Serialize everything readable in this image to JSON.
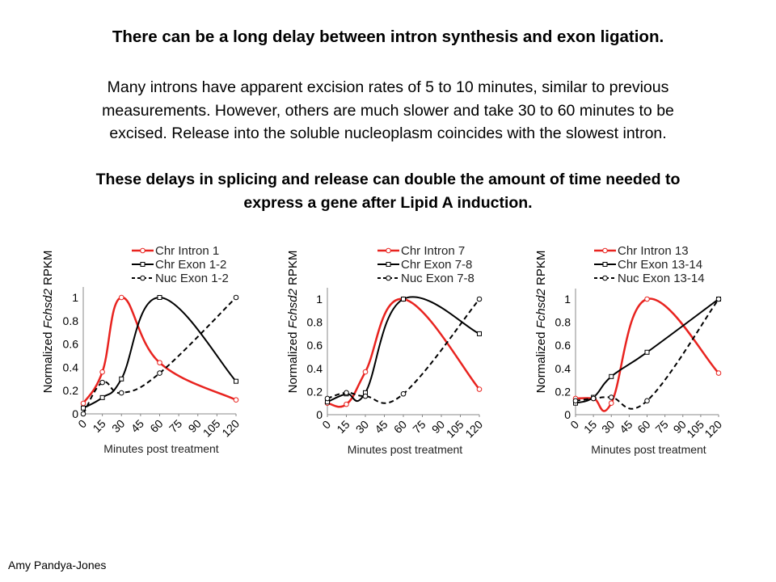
{
  "slide": {
    "title": "There can be a long delay between intron synthesis and exon ligation.",
    "paragraph_lines": [
      "Many introns have apparent excision rates of 5 to 10 minutes, similar to previous",
      "measurements. However, others are much slower and take 30 to 60 minutes to be",
      "excised. Release into the soluble nucleoplasm coincides with the slowest intron."
    ],
    "conclusion_lines": [
      "These delays in splicing and release can double the amount of time needed to",
      "express a gene after Lipid A induction."
    ],
    "footer": "Amy Pandya-Jones"
  },
  "colors": {
    "intron": "#e8231f",
    "exon": "#000000",
    "nuc": "#000000"
  },
  "chart_data": [
    {
      "type": "line",
      "xlabel": "Minutes post treatment",
      "ylabel": {
        "prefix": "Normalized ",
        "gene": "Fchsd2",
        "suffix": " RPKM"
      },
      "x_ticks": [
        "0",
        "15",
        "30",
        "45",
        "60",
        "75",
        "90",
        "105",
        "120"
      ],
      "y_ticks": [
        "0",
        "0.2",
        "0.4",
        "0.6",
        "0.8",
        "1"
      ],
      "xlim": [
        0,
        120
      ],
      "ylim": [
        0,
        1.1
      ],
      "x": [
        0,
        15,
        30,
        60,
        120
      ],
      "series": [
        {
          "name": "Chr Intron 1",
          "style": "intron",
          "values": [
            0.09,
            0.36,
            1.0,
            0.44,
            0.12
          ]
        },
        {
          "name": "Chr Exon 1-2",
          "style": "exon",
          "values": [
            0.05,
            0.14,
            0.3,
            1.0,
            0.28
          ]
        },
        {
          "name": "Nuc Exon 1-2",
          "style": "nuc",
          "values": [
            0.0,
            0.27,
            0.18,
            0.35,
            1.0
          ]
        }
      ]
    },
    {
      "type": "line",
      "xlabel": "Minutes post treatment",
      "ylabel": {
        "prefix": "Normalized ",
        "gene": "Fchsd2",
        "suffix": " RPKM"
      },
      "x_ticks": [
        "0",
        "15",
        "30",
        "45",
        "60",
        "75",
        "90",
        "105",
        "120"
      ],
      "y_ticks": [
        "0",
        "0.2",
        "0.4",
        "0.6",
        "0.8",
        "1"
      ],
      "xlim": [
        0,
        120
      ],
      "ylim": [
        0,
        1.1
      ],
      "x": [
        0,
        15,
        30,
        60,
        120
      ],
      "series": [
        {
          "name": "Chr Intron 7",
          "style": "intron",
          "values": [
            0.1,
            0.09,
            0.37,
            1.0,
            0.22
          ]
        },
        {
          "name": "Chr Exon 7-8",
          "style": "exon",
          "values": [
            0.11,
            0.18,
            0.19,
            1.0,
            0.7
          ]
        },
        {
          "name": "Nuc Exon 7-8",
          "style": "nuc",
          "values": [
            0.14,
            0.19,
            0.16,
            0.18,
            1.0
          ]
        }
      ]
    },
    {
      "type": "line",
      "xlabel": "Minutes post treatment",
      "ylabel": {
        "prefix": "Normalized ",
        "gene": "Fchsd2",
        "suffix": " RPKM"
      },
      "x_ticks": [
        "0",
        "15",
        "30",
        "45",
        "60",
        "75",
        "90",
        "105",
        "120"
      ],
      "y_ticks": [
        "0",
        "0.2",
        "0.4",
        "0.6",
        "0.8",
        "1"
      ],
      "xlim": [
        0,
        120
      ],
      "ylim": [
        0,
        1.1
      ],
      "x": [
        0,
        15,
        30,
        60,
        120
      ],
      "series": [
        {
          "name": "Chr Intron 13",
          "style": "intron",
          "values": [
            0.14,
            0.14,
            0.1,
            1.0,
            0.36
          ]
        },
        {
          "name": "Chr Exon 13-14",
          "style": "exon",
          "values": [
            0.1,
            0.15,
            0.33,
            0.54,
            1.0
          ]
        },
        {
          "name": "Nuc Exon 13-14",
          "style": "nuc",
          "values": [
            0.12,
            0.14,
            0.15,
            0.12,
            1.0
          ]
        }
      ]
    }
  ]
}
